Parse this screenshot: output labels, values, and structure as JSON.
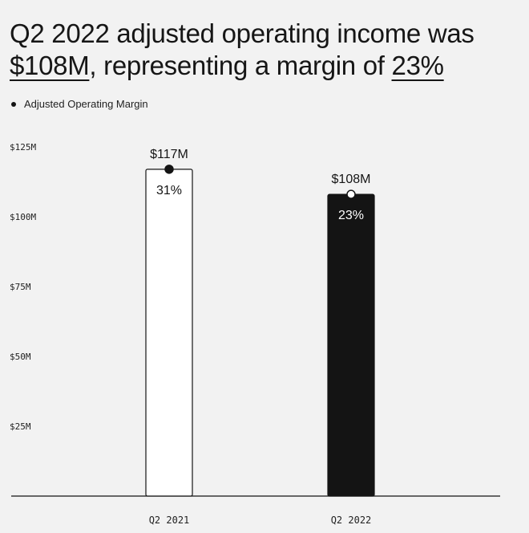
{
  "title": {
    "part1": "Q2 2022 adjusted operating income was ",
    "amount": "$108M",
    "part2": ", representing a margin of ",
    "margin": "23%"
  },
  "legend": {
    "label": "Adjusted Operating Margin"
  },
  "chart_data": {
    "type": "bar",
    "title": "Q2 2022 adjusted operating income was $108M, representing a margin of 23%",
    "categories": [
      "Q2 2021",
      "Q2 2022"
    ],
    "series": [
      {
        "name": "Adjusted Operating Margin",
        "values": [
          117,
          108
        ]
      }
    ],
    "value_labels": [
      "$117M",
      "$108M"
    ],
    "margin_labels": [
      "31%",
      "23%"
    ],
    "margins": [
      31,
      23
    ],
    "yticks": [
      {
        "value": 25,
        "label": "$25M"
      },
      {
        "value": 50,
        "label": "$50M"
      },
      {
        "value": 75,
        "label": "$75M"
      },
      {
        "value": 100,
        "label": "$100M"
      },
      {
        "value": 125,
        "label": "$125M"
      }
    ],
    "ylim": [
      0,
      125
    ],
    "bar_fills": [
      "#ffffff",
      "#141414"
    ],
    "bar_text_colors": [
      "#141414",
      "#ffffff"
    ],
    "grid": false,
    "legend_position": "top-left"
  }
}
